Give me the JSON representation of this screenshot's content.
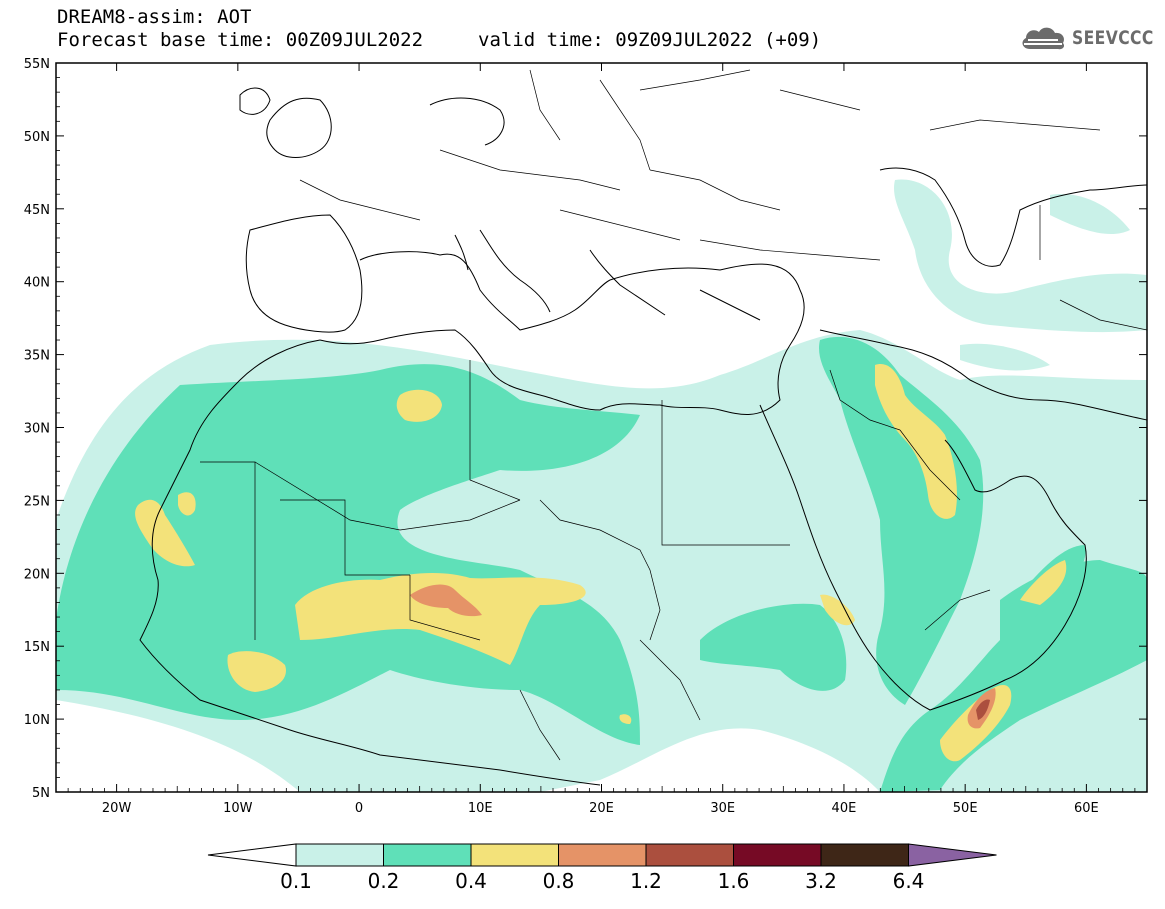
{
  "header": {
    "product": "DREAM8-assim: AOT",
    "base_time": "Forecast base time: 00Z09JUL2022",
    "valid_time": "valid time: 09Z09JUL2022 (+09)"
  },
  "logo": {
    "text": "SEEVCCC",
    "icon": "cloud-icon"
  },
  "map": {
    "lat_ticks": [
      "55N",
      "50N",
      "45N",
      "40N",
      "35N",
      "30N",
      "25N",
      "20N",
      "15N",
      "10N",
      "5N"
    ],
    "lon_ticks": [
      "20W",
      "10W",
      "0",
      "10E",
      "20E",
      "30E",
      "40E",
      "50E",
      "60E"
    ],
    "lat_range": [
      5,
      55
    ],
    "lon_range": [
      -25,
      65
    ]
  },
  "legend": {
    "labels": [
      "0.1",
      "0.2",
      "0.4",
      "0.8",
      "1.2",
      "1.6",
      "3.2",
      "6.4"
    ],
    "colors": [
      "#ffffff",
      "#c9f1e8",
      "#5fe0b8",
      "#f3e27a",
      "#e59367",
      "#ab4f3e",
      "#760a25",
      "#3e2617",
      "#8a62a2"
    ]
  }
}
